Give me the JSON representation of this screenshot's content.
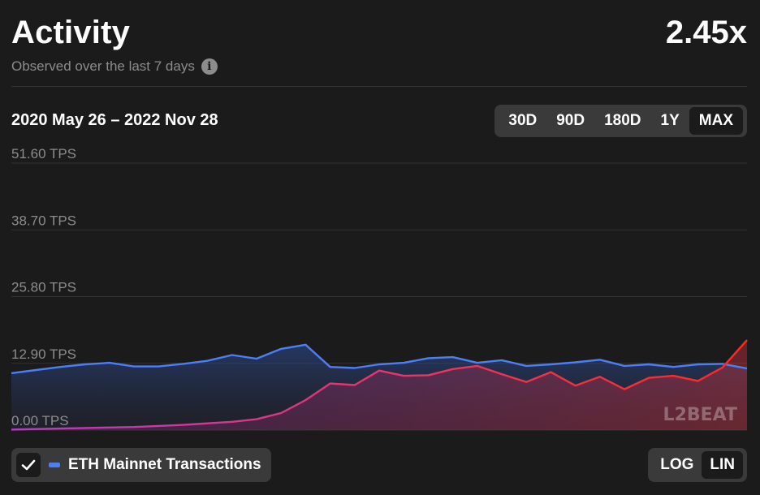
{
  "header": {
    "title": "Activity",
    "ratio": "2.45x",
    "subtitle": "Observed over the last 7 days",
    "info_icon": "info-icon"
  },
  "range_label": "2020 May 26 – 2022 Nov 28",
  "time_tabs": [
    {
      "label": "30D",
      "active": false
    },
    {
      "label": "90D",
      "active": false
    },
    {
      "label": "180D",
      "active": false
    },
    {
      "label": "1Y",
      "active": false
    },
    {
      "label": "MAX",
      "active": true
    }
  ],
  "scale_tabs": [
    {
      "label": "LOG",
      "active": false
    },
    {
      "label": "LIN",
      "active": true
    }
  ],
  "legend": {
    "label": "ETH Mainnet Transactions",
    "checked": true,
    "color": "#4c7ff5"
  },
  "watermark": "L2BEAT",
  "colors": {
    "background": "#1b1b1c",
    "eth": "#4c7ff5",
    "layer2_start": "#b63cc8",
    "layer2_end": "#ff2a1f"
  },
  "chart_data": {
    "type": "line",
    "x_range": [
      "2020-05-26",
      "2022-11-28"
    ],
    "y_unit": "TPS",
    "ylim": [
      0,
      51.6
    ],
    "y_ticks": [
      0,
      12.9,
      25.8,
      38.7,
      51.6
    ],
    "y_tick_labels": [
      "0.00 TPS",
      "12.90 TPS",
      "25.80 TPS",
      "38.70 TPS",
      "51.60 TPS"
    ],
    "grid": true,
    "scale": "linear",
    "series": [
      {
        "name": "ETH Mainnet Transactions",
        "color": "#4c7ff5",
        "x": [
          "2020-05",
          "2020-06",
          "2020-07",
          "2020-08",
          "2020-09",
          "2020-10",
          "2020-11",
          "2020-12",
          "2021-01",
          "2021-02",
          "2021-03",
          "2021-04",
          "2021-05",
          "2021-06",
          "2021-07",
          "2021-08",
          "2021-09",
          "2021-10",
          "2021-11",
          "2021-12",
          "2022-01",
          "2022-02",
          "2022-03",
          "2022-04",
          "2022-05",
          "2022-06",
          "2022-07",
          "2022-08",
          "2022-09",
          "2022-10",
          "2022-11"
        ],
        "values": [
          11.0,
          11.6,
          12.2,
          12.7,
          13.0,
          12.3,
          12.3,
          12.8,
          13.4,
          14.5,
          13.8,
          15.7,
          16.5,
          12.2,
          12.0,
          12.7,
          13.0,
          13.9,
          14.1,
          13.0,
          13.5,
          12.4,
          12.7,
          13.1,
          13.6,
          12.4,
          12.7,
          12.2,
          12.7,
          12.8,
          11.9
        ]
      },
      {
        "name": "",
        "color": "#ff2a1f",
        "x": [
          "2020-05",
          "2020-06",
          "2020-07",
          "2020-08",
          "2020-09",
          "2020-10",
          "2020-11",
          "2020-12",
          "2021-01",
          "2021-02",
          "2021-03",
          "2021-04",
          "2021-05",
          "2021-06",
          "2021-07",
          "2021-08",
          "2021-09",
          "2021-10",
          "2021-11",
          "2021-12",
          "2022-01",
          "2022-02",
          "2022-03",
          "2022-04",
          "2022-05",
          "2022-06",
          "2022-07",
          "2022-08",
          "2022-09",
          "2022-10",
          "2022-11"
        ],
        "values": [
          0.1,
          0.2,
          0.3,
          0.4,
          0.5,
          0.6,
          0.8,
          1.0,
          1.3,
          1.6,
          2.1,
          3.3,
          5.8,
          9.0,
          8.7,
          11.5,
          10.5,
          10.6,
          11.8,
          12.4,
          10.8,
          9.3,
          11.2,
          8.6,
          10.3,
          7.9,
          10.1,
          10.5,
          9.5,
          12.1,
          17.4
        ]
      }
    ],
    "annotations": []
  }
}
